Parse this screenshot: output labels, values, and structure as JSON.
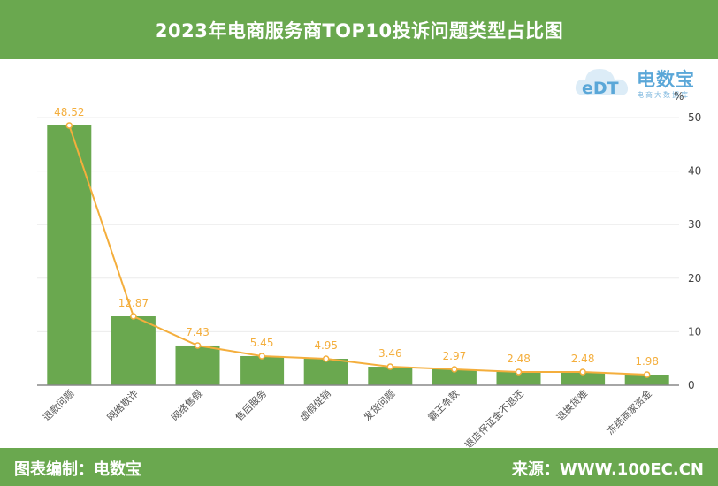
{
  "header": {
    "title": "2023年电商服务商TOP10投诉问题类型占比图"
  },
  "logo": {
    "brand": "电数宝",
    "tagline": "电商大数据库",
    "badge": "%"
  },
  "footer": {
    "left": "图表编制：电数宝",
    "right": "来源：WWW.100EC.CN"
  },
  "colors": {
    "bar": "#6aa84f",
    "line": "#f4ae3c",
    "band": "#6aa84f"
  },
  "chart_data": {
    "type": "bar",
    "title": "2023年电商服务商TOP10投诉问题类型占比图",
    "categories": [
      "退款问题",
      "网络欺诈",
      "网络售假",
      "售后服务",
      "虚假促销",
      "发货问题",
      "霸王条款",
      "退店保证金不退还",
      "退换货难",
      "冻结商家资金"
    ],
    "values": [
      48.52,
      12.87,
      7.43,
      5.45,
      4.95,
      3.46,
      2.97,
      2.48,
      2.48,
      1.98
    ],
    "yticks": [
      0,
      10,
      20,
      30,
      40,
      50
    ],
    "ylim": [
      0,
      50
    ],
    "axis_unit": "%",
    "line_overlay": true,
    "grid": true,
    "xlabel": "",
    "ylabel": ""
  }
}
